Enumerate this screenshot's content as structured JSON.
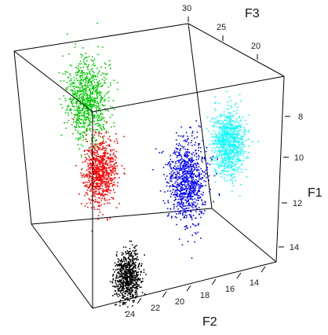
{
  "chart_data": {
    "type": "scatter",
    "subtype": "3d-scatter",
    "title": "",
    "axes": {
      "F1": {
        "label": "F1",
        "ticks": [
          "8",
          "10",
          "12",
          "14"
        ],
        "range": [
          7,
          15
        ]
      },
      "F2": {
        "label": "F2",
        "ticks": [
          "14",
          "16",
          "18",
          "20",
          "22",
          "24"
        ],
        "range": [
          13,
          25
        ]
      },
      "F3": {
        "label": "F3",
        "ticks": [
          "20",
          "25",
          "30"
        ],
        "range": [
          18,
          31
        ]
      }
    },
    "legend": "none",
    "grid": false,
    "clusters": [
      {
        "color": "#00cc00",
        "center": {
          "F1": 8.2,
          "F2": 23.5,
          "F3": 30.5
        },
        "spread": "elongated"
      },
      {
        "color": "#ff0000",
        "center": {
          "F1": 10.0,
          "F2": 23.2,
          "F3": 27.5
        },
        "spread": "medium"
      },
      {
        "color": "#00ffff",
        "center": {
          "F1": 8.3,
          "F2": 16.8,
          "F3": 21.5
        },
        "spread": "medium"
      },
      {
        "color": "#0000ff",
        "center": {
          "F1": 10.2,
          "F2": 18.5,
          "F3": 24.5
        },
        "spread": "elongated"
      },
      {
        "color": "#000000",
        "center": {
          "F1": 13.0,
          "F2": 22.0,
          "F3": 24.0
        },
        "spread": "compact"
      }
    ]
  }
}
